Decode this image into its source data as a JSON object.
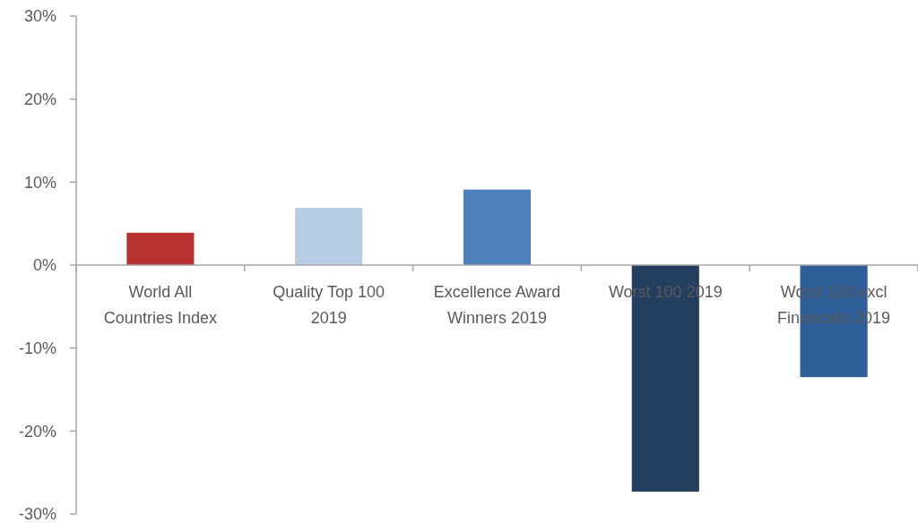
{
  "chart_data": {
    "type": "bar",
    "categories": [
      "World All Countries Index",
      "Quality Top 100 2019",
      "Excellence Award Winners 2019",
      "Worst 100 2019",
      "Worst 100 excl Financials 2019"
    ],
    "values": [
      3.9,
      6.9,
      9.1,
      -27.3,
      -13.5
    ],
    "colors": [
      "#b83232",
      "#b9cde5",
      "#4f81bd",
      "#243f60",
      "#2e5f99"
    ],
    "ylim": [
      -30,
      30
    ],
    "yticks": [
      {
        "value": -30,
        "label": "-30%"
      },
      {
        "value": -20,
        "label": "-20%"
      },
      {
        "value": -10,
        "label": "-10%"
      },
      {
        "value": 0,
        "label": "0%"
      },
      {
        "value": 10,
        "label": "10%"
      },
      {
        "value": 20,
        "label": "20%"
      },
      {
        "value": 30,
        "label": "30%"
      }
    ],
    "grid": false
  }
}
